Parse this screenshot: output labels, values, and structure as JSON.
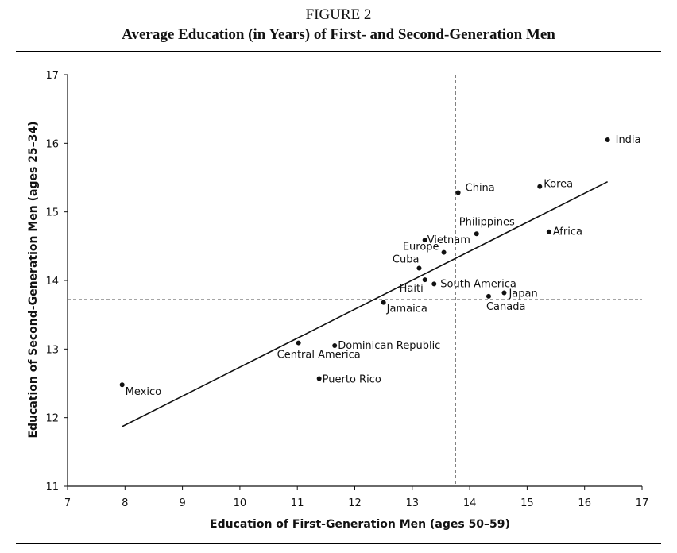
{
  "figure_label": "FIGURE 2",
  "figure_title": "Average Education (in Years) of First- and Second-Generation Men",
  "chart_data": {
    "type": "scatter",
    "title": "Average Education (in Years) of First- and Second-Generation Men",
    "xlabel": "Education of First-Generation  Men (ages  50–59)",
    "ylabel": "Education of Second-Generation  Men (ages 25–34)",
    "xlim": [
      7,
      17
    ],
    "ylim": [
      11,
      17
    ],
    "x_ticks": [
      7,
      8,
      9,
      10,
      11,
      12,
      13,
      14,
      15,
      16,
      17
    ],
    "y_ticks": [
      11,
      12,
      13,
      14,
      15,
      16,
      17
    ],
    "reference_lines": {
      "x_mean": 13.75,
      "y_mean": 13.72,
      "style": "dashed"
    },
    "trend_line": {
      "x": [
        7.95,
        16.4
      ],
      "y": [
        11.87,
        15.44
      ]
    },
    "points": [
      {
        "label": "India",
        "x": 16.4,
        "y": 16.05
      },
      {
        "label": "Korea",
        "x": 15.22,
        "y": 15.37
      },
      {
        "label": "China",
        "x": 13.8,
        "y": 15.28
      },
      {
        "label": "Africa",
        "x": 15.38,
        "y": 14.71
      },
      {
        "label": "Philippines",
        "x": 14.12,
        "y": 14.68
      },
      {
        "label": "Vietnam",
        "x": 13.22,
        "y": 14.59
      },
      {
        "label": "Europe",
        "x": 13.55,
        "y": 14.41
      },
      {
        "label": "Cuba",
        "x": 13.12,
        "y": 14.18
      },
      {
        "label": "South America",
        "x": 13.38,
        "y": 13.95
      },
      {
        "label": "Haiti",
        "x": 13.22,
        "y": 14.01
      },
      {
        "label": "Japan",
        "x": 14.6,
        "y": 13.82
      },
      {
        "label": "Canada",
        "x": 14.33,
        "y": 13.77
      },
      {
        "label": "Jamaica",
        "x": 12.5,
        "y": 13.68
      },
      {
        "label": "Central America",
        "x": 11.02,
        "y": 13.09
      },
      {
        "label": "Dominican Republic",
        "x": 11.65,
        "y": 13.05
      },
      {
        "label": "Puerto Rico",
        "x": 11.38,
        "y": 12.57
      },
      {
        "label": "Mexico",
        "x": 7.95,
        "y": 12.48
      }
    ]
  }
}
